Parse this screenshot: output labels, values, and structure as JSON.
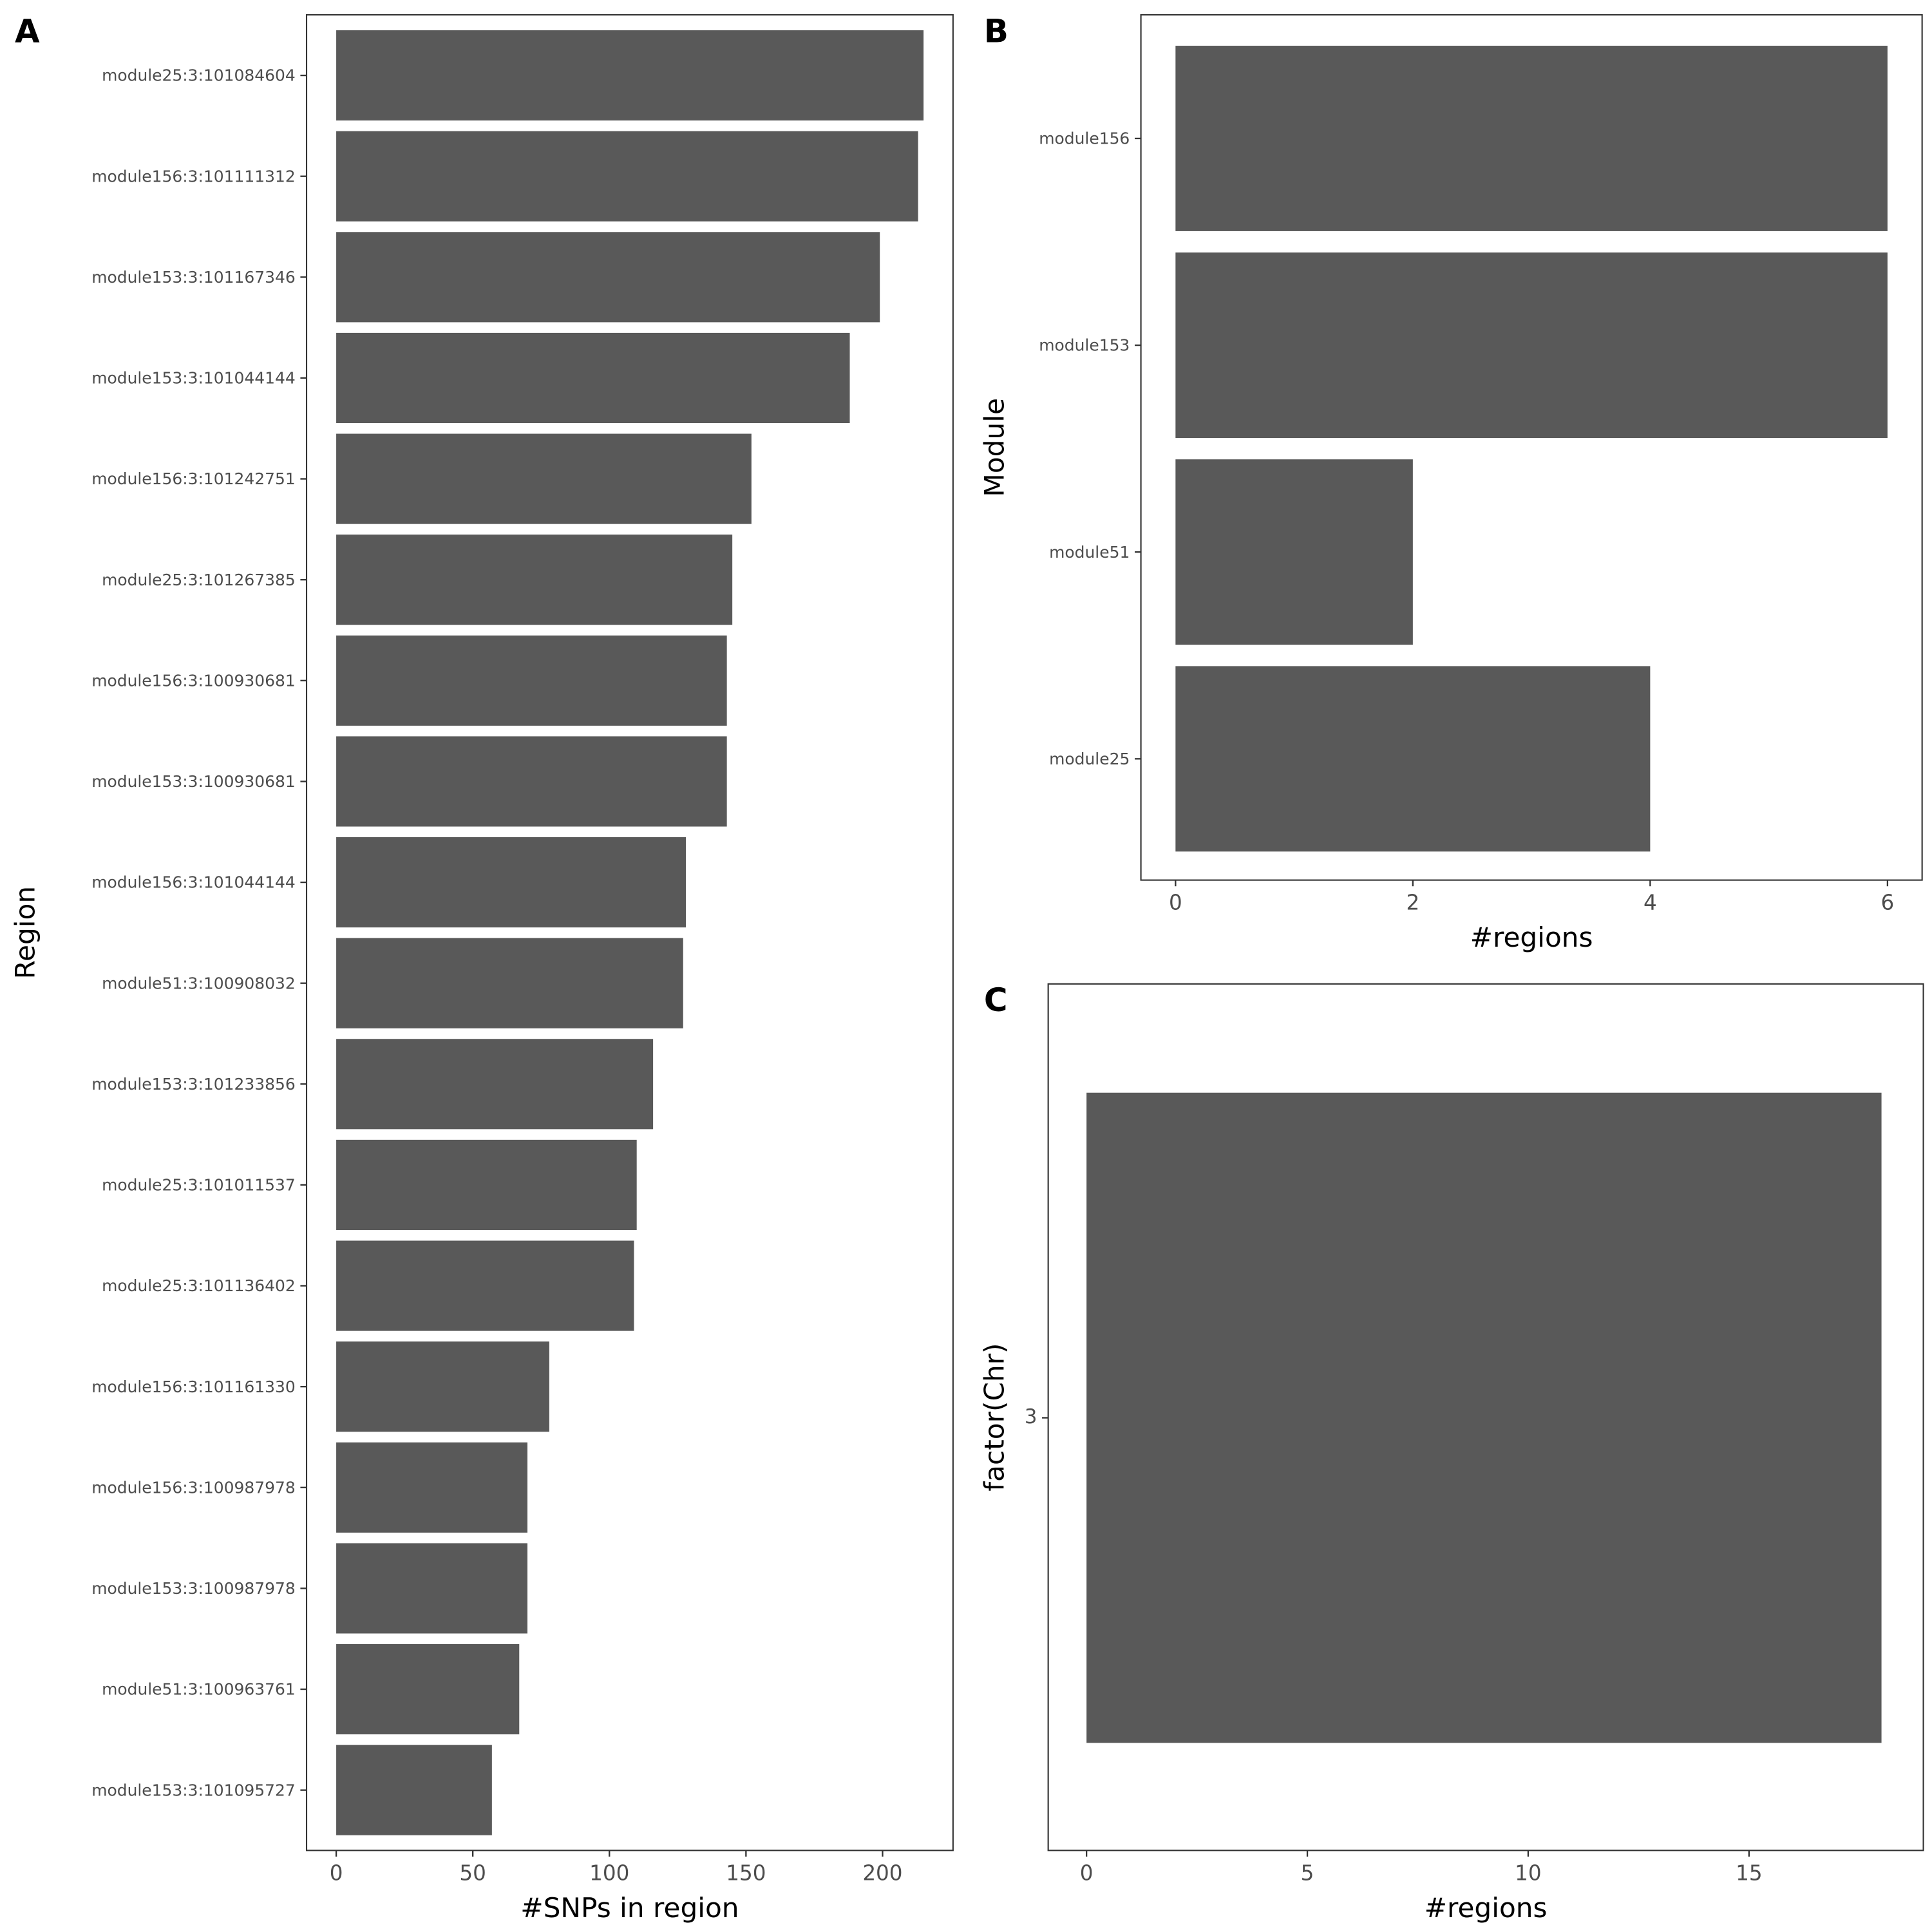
{
  "chart_data": [
    {
      "panel": "A",
      "type": "bar",
      "orientation": "horizontal",
      "categories": [
        "module25:3:101084604",
        "module156:3:101111312",
        "module153:3:101167346",
        "module153:3:101044144",
        "module156:3:101242751",
        "module25:3:101267385",
        "module156:3:100930681",
        "module153:3:100930681",
        "module156:3:101044144",
        "module51:3:100908032",
        "module153:3:101233856",
        "module25:3:101011537",
        "module25:3:101136402",
        "module156:3:101161330",
        "module156:3:100987978",
        "module153:3:100987978",
        "module51:3:100963761",
        "module153:3:101095727"
      ],
      "values": [
        215,
        213,
        199,
        188,
        152,
        145,
        143,
        143,
        128,
        127,
        116,
        110,
        109,
        78,
        70,
        70,
        67,
        57
      ],
      "xlabel": "#SNPs in region",
      "ylabel": "Region",
      "xticks": [
        "0",
        "50",
        "100",
        "150",
        "200"
      ],
      "xlim": [
        0,
        225
      ],
      "bar_color": "#595959"
    },
    {
      "panel": "B",
      "type": "bar",
      "orientation": "horizontal",
      "categories": [
        "module156",
        "module153",
        "module51",
        "module25"
      ],
      "values": [
        6,
        6,
        2,
        4
      ],
      "xlabel": "#regions",
      "ylabel": "Module",
      "xticks": [
        "0",
        "2",
        "4",
        "6"
      ],
      "xlim": [
        0,
        6.3
      ],
      "bar_color": "#595959"
    },
    {
      "panel": "C",
      "type": "bar",
      "orientation": "horizontal",
      "categories": [
        "3"
      ],
      "values": [
        18
      ],
      "xlabel": "#regions",
      "ylabel": "factor(Chr)",
      "xticks": [
        "0",
        "5",
        "10",
        "15"
      ],
      "xlim": [
        0,
        18.9
      ],
      "bar_color": "#595959"
    }
  ]
}
